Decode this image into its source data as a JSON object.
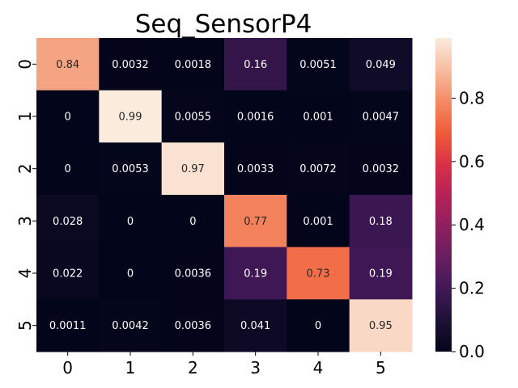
{
  "chart_data": {
    "type": "heatmap",
    "title": "Seq_SensorP4",
    "xlabel": "",
    "ylabel": "",
    "x_categories": [
      "0",
      "1",
      "2",
      "3",
      "4",
      "5"
    ],
    "y_categories": [
      "0",
      "1",
      "2",
      "3",
      "4",
      "5"
    ],
    "values": [
      [
        0.84,
        0.0032,
        0.0018,
        0.16,
        0.0051,
        0.049
      ],
      [
        0,
        0.99,
        0.0055,
        0.0016,
        0.001,
        0.0047
      ],
      [
        0,
        0.0053,
        0.97,
        0.0033,
        0.0072,
        0.0032
      ],
      [
        0.028,
        0,
        0,
        0.77,
        0.001,
        0.18
      ],
      [
        0.022,
        0,
        0.0036,
        0.19,
        0.73,
        0.19
      ],
      [
        0.0011,
        0.0042,
        0.0036,
        0.041,
        0,
        0.95
      ]
    ],
    "labels": [
      [
        "0.84",
        "0.0032",
        "0.0018",
        "0.16",
        "0.0051",
        "0.049"
      ],
      [
        "0",
        "0.99",
        "0.0055",
        "0.0016",
        "0.001",
        "0.0047"
      ],
      [
        "0",
        "0.0053",
        "0.97",
        "0.0033",
        "0.0072",
        "0.0032"
      ],
      [
        "0.028",
        "0",
        "0",
        "0.77",
        "0.001",
        "0.18"
      ],
      [
        "0.022",
        "0",
        "0.0036",
        "0.19",
        "0.73",
        "0.19"
      ],
      [
        "0.0011",
        "0.0042",
        "0.0036",
        "0.041",
        "0",
        "0.95"
      ]
    ],
    "colorbar": {
      "range": [
        0,
        0.99
      ],
      "ticks": [
        0.0,
        0.2,
        0.4,
        0.6,
        0.8
      ],
      "tick_labels": [
        "0.0",
        "0.2",
        "0.4",
        "0.6",
        "0.8"
      ]
    },
    "colormap": "rocket"
  }
}
